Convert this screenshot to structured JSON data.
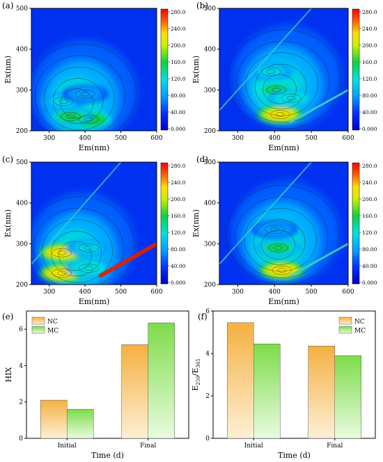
{
  "eem_panels": [
    {
      "label": "(a)",
      "xlabel": "Em(nm)",
      "ylabel": "Ex(nm)",
      "xticks": [
        "300",
        "400",
        "500",
        "600"
      ],
      "yticks": [
        "200",
        "300",
        "400",
        "500"
      ],
      "colorbar_ticks": [
        "280.0",
        "240.0",
        "200.0",
        "160.0",
        "120.0",
        "80.00",
        "40.00",
        "0.000"
      ],
      "peaks": [
        {
          "em": 410,
          "ex": 228,
          "intensity": 190
        },
        {
          "em": 360,
          "ex": 235,
          "intensity": 160
        },
        {
          "em": 340,
          "ex": 272,
          "intensity": 140
        },
        {
          "em": 400,
          "ex": 290,
          "intensity": 110
        }
      ],
      "scatter_lines": false
    },
    {
      "label": "(b)",
      "xlabel": "Em(nm)",
      "ylabel": "Ex(nm)",
      "xticks": [
        "300",
        "400",
        "500",
        "600"
      ],
      "yticks": [
        "200",
        "300",
        "400",
        "500"
      ],
      "colorbar_ticks": [
        "280.0",
        "240.0",
        "200.0",
        "160.0",
        "120.0",
        "80.00",
        "40.00",
        "0.000"
      ],
      "peaks": [
        {
          "em": 415,
          "ex": 240,
          "intensity": 240
        },
        {
          "em": 405,
          "ex": 300,
          "intensity": 175
        },
        {
          "em": 390,
          "ex": 345,
          "intensity": 120
        },
        {
          "em": 445,
          "ex": 280,
          "intensity": 150
        }
      ],
      "scatter_lines": true
    },
    {
      "label": "(c)",
      "xlabel": "Em(nm)",
      "ylabel": "Ex(nm)",
      "xticks": [
        "300",
        "400",
        "500",
        "600"
      ],
      "yticks": [
        "200",
        "300",
        "400",
        "500"
      ],
      "colorbar_ticks": [
        "280.0",
        "240.0",
        "200.0",
        "160.0",
        "120.0",
        "80.00",
        "40.00",
        "0.000"
      ],
      "peaks": [
        {
          "em": 335,
          "ex": 228,
          "intensity": 240
        },
        {
          "em": 335,
          "ex": 278,
          "intensity": 240
        },
        {
          "em": 410,
          "ex": 240,
          "intensity": 150
        },
        {
          "em": 410,
          "ex": 290,
          "intensity": 120
        }
      ],
      "scatter_lines": true
    },
    {
      "label": "(d)",
      "xlabel": "Em(nm)",
      "ylabel": "Ex(nm)",
      "xticks": [
        "300",
        "400",
        "500",
        "600"
      ],
      "yticks": [
        "200",
        "300",
        "400",
        "500"
      ],
      "colorbar_ticks": [
        "280.0",
        "240.0",
        "200.0",
        "160.0",
        "120.0",
        "80.00",
        "40.00",
        "0.000"
      ],
      "peaks": [
        {
          "em": 420,
          "ex": 235,
          "intensity": 240
        },
        {
          "em": 410,
          "ex": 290,
          "intensity": 160
        },
        {
          "em": 400,
          "ex": 335,
          "intensity": 110
        }
      ],
      "scatter_lines": true
    }
  ],
  "chart_data": [
    {
      "type": "bar",
      "label": "(e)",
      "categories": [
        "Initial",
        "Final"
      ],
      "series": [
        {
          "name": "NC",
          "values": [
            2.1,
            5.15
          ]
        },
        {
          "name": "MC",
          "values": [
            1.6,
            6.35
          ]
        }
      ],
      "xlabel": "Time (d)",
      "ylabel": "HIX",
      "ylim": [
        0,
        7
      ],
      "yticks": [
        "0",
        "2",
        "4",
        "6"
      ],
      "legend": "top-left"
    },
    {
      "type": "bar",
      "label": "(f)",
      "categories": [
        "Initial",
        "Final"
      ],
      "series": [
        {
          "name": "NC",
          "values": [
            5.45,
            4.35
          ]
        },
        {
          "name": "MC",
          "values": [
            4.45,
            3.9
          ]
        }
      ],
      "xlabel": "Time (d)",
      "ylabel": "E250/E365",
      "ylim": [
        0,
        6
      ],
      "yticks": [
        "0",
        "2",
        "4",
        "6"
      ],
      "legend": "top-right"
    }
  ],
  "colors": {
    "nc_top": "#f5b041",
    "nc_bottom": "#fdf0d5",
    "mc_top": "#7ddc4a",
    "mc_bottom": "#e9fbe0"
  }
}
